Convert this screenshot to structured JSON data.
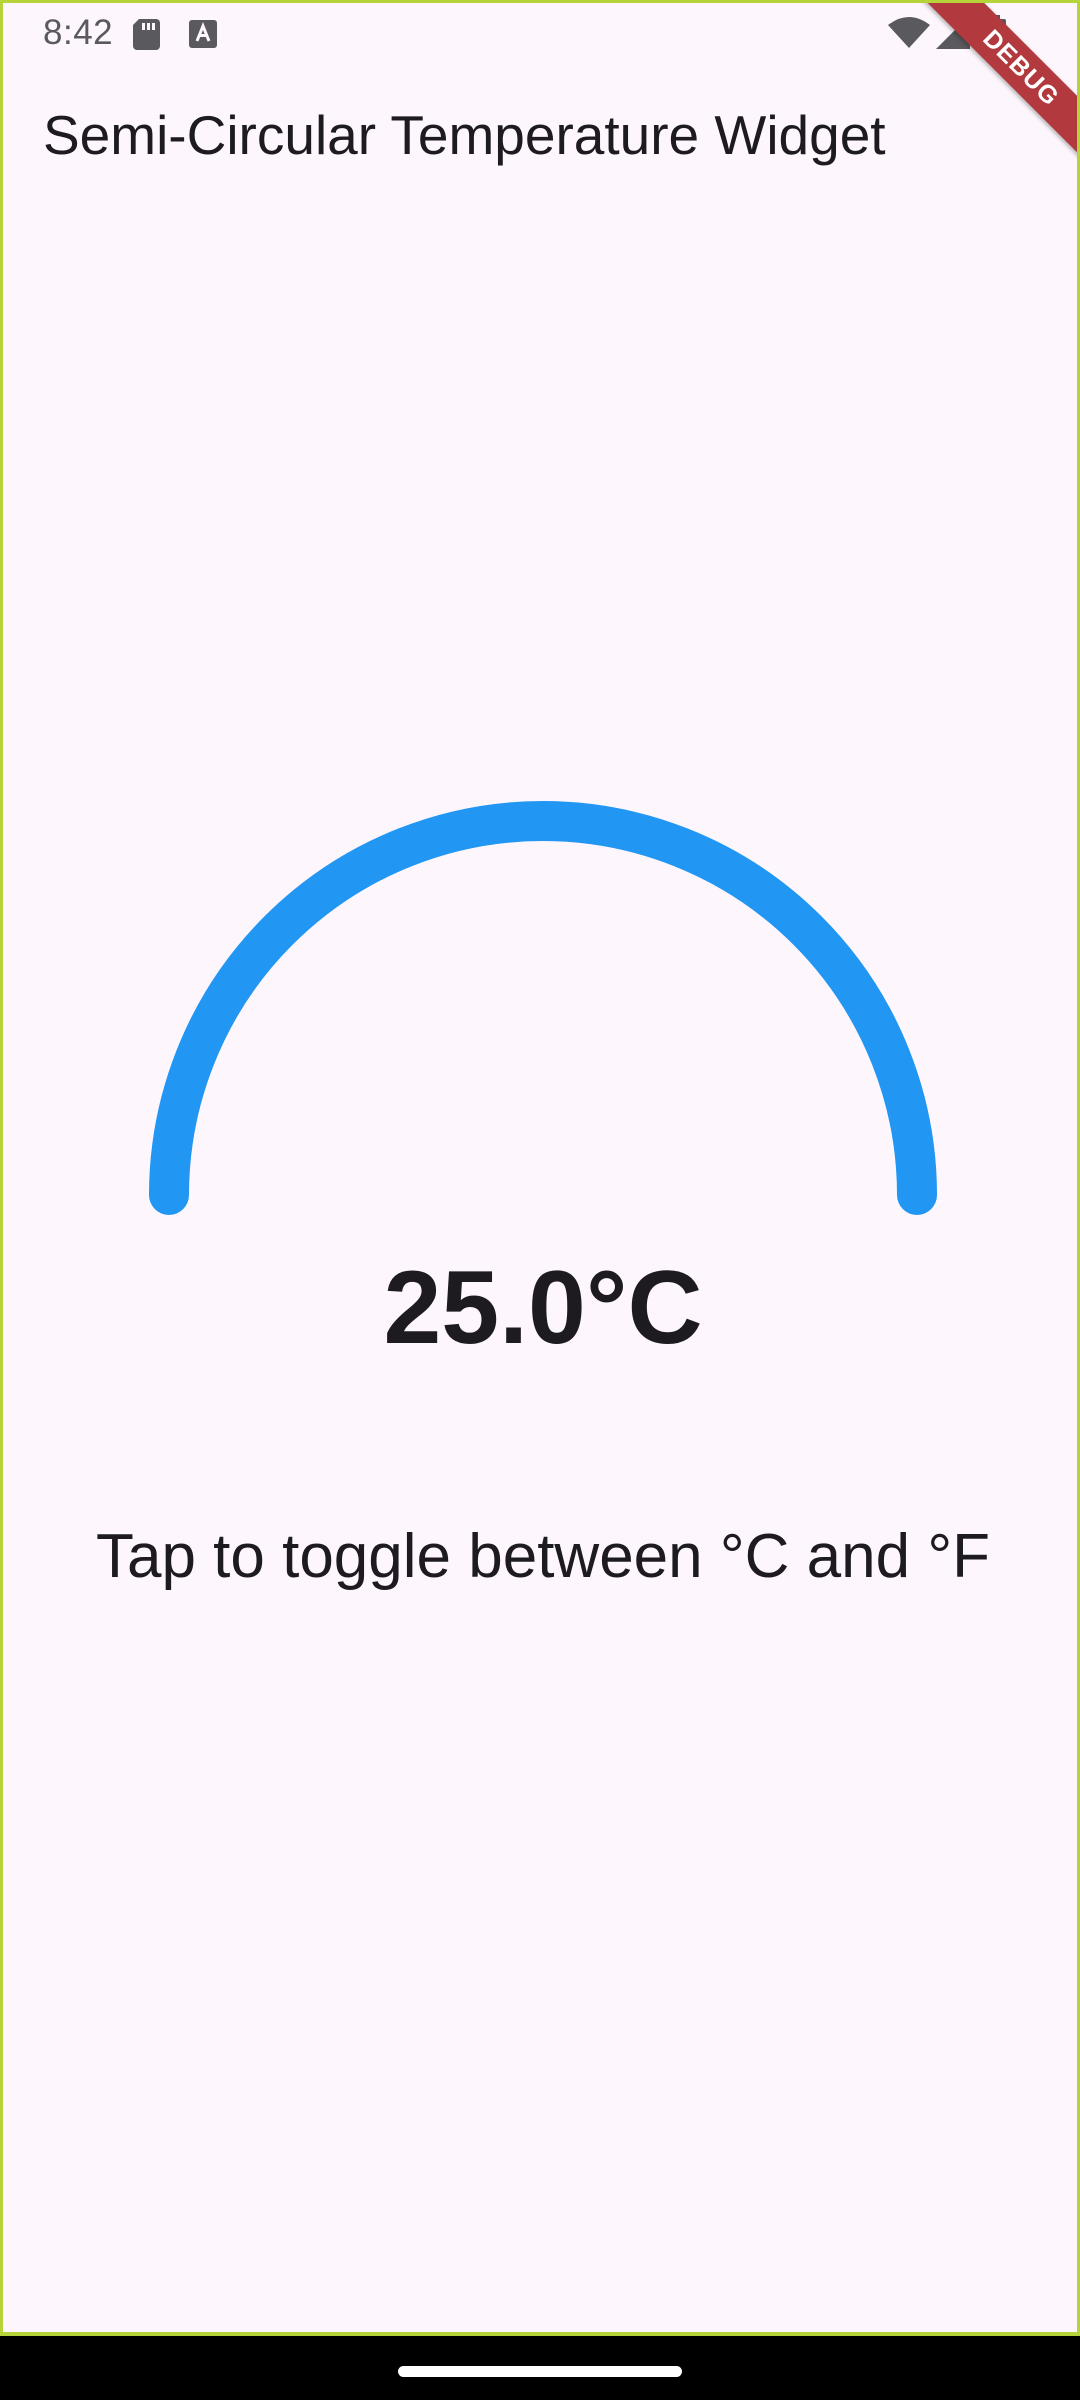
{
  "status_bar": {
    "time": "8:42",
    "icons": [
      "sd-card-icon",
      "a-notification-icon",
      "wifi-icon",
      "signal-icon",
      "battery-icon"
    ]
  },
  "debug_banner": {
    "label": "DEBUG",
    "color": "#B23A3E"
  },
  "app_bar": {
    "title": "Semi-Circular Temperature Widget"
  },
  "gauge": {
    "arc_color": "#2196F3",
    "fill_fraction": 1.0,
    "temperature": "25.0°C"
  },
  "hint": {
    "text": "Tap to toggle between °C and °F"
  },
  "colors": {
    "background": "#FDF7FD",
    "text": "#1D1B20",
    "accent": "#2196F3"
  }
}
